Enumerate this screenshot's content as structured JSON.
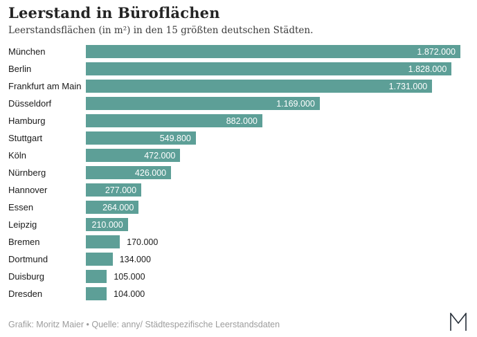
{
  "header": {
    "title": "Leerstand in Büroflächen",
    "subtitle": "Leerstandsflächen (in m²) in den 15 größten deutschen Städten."
  },
  "chart_data": {
    "type": "bar",
    "orientation": "horizontal",
    "title": "Leerstand in Büroflächen",
    "subtitle": "Leerstandsflächen (in m²) in den 15 größten deutschen Städten.",
    "categories": [
      "München",
      "Berlin",
      "Frankfurt am Main",
      "Düsseldorf",
      "Hamburg",
      "Stuttgart",
      "Köln",
      "Nürnberg",
      "Hannover",
      "Essen",
      "Leipzig",
      "Bremen",
      "Dortmund",
      "Duisburg",
      "Dresden"
    ],
    "values": [
      1872000,
      1828000,
      1731000,
      1169000,
      882000,
      549800,
      472000,
      426000,
      277000,
      264000,
      210000,
      170000,
      134000,
      105000,
      104000
    ],
    "value_labels": [
      "1.872.000",
      "1.828.000",
      "1.731.000",
      "1.169.000",
      "882.000",
      "549.800",
      "472.000",
      "426.000",
      "277.000",
      "264.000",
      "210.000",
      "170.000",
      "134.000",
      "105.000",
      "104.000"
    ],
    "xlabel": "",
    "ylabel": "",
    "xlim": [
      0,
      1872000
    ],
    "grid": false,
    "legend": "none",
    "bar_color": "#5d9f97",
    "value_label_inside_color": "#ffffff",
    "value_label_outside_color": "#1a1a1a"
  },
  "footer": {
    "credit": "Grafik: Moritz Maier • Quelle: anny/ Städtespezifische Leerstandsdaten",
    "logo_letter": "M"
  }
}
